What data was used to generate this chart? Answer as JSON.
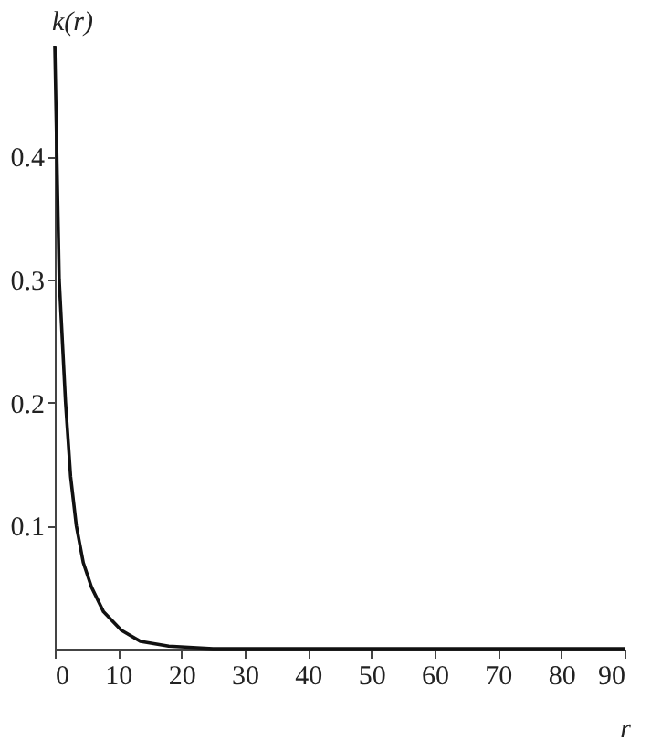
{
  "chart_data": {
    "type": "line",
    "xlabel": "r",
    "ylabel": "k(r)",
    "x": [
      0,
      0.7,
      1.7,
      2.5,
      3.4,
      4.5,
      5.8,
      7.7,
      10.5,
      13.5,
      18,
      25,
      40,
      60,
      90
    ],
    "series": [
      {
        "color": "#111111",
        "values": [
          0.49,
          0.3,
          0.2,
          0.14,
          0.1,
          0.07,
          0.05,
          0.03,
          0.015,
          0.006,
          0.002,
          0,
          0,
          0,
          0
        ]
      }
    ],
    "xlim": [
      0,
      90
    ],
    "xticks": [
      0,
      10,
      20,
      30,
      40,
      50,
      60,
      70,
      80,
      90
    ],
    "ylim": [
      0,
      0.49
    ],
    "yticks": [
      0.1,
      0.2,
      0.3,
      0.4
    ],
    "grid": false,
    "legend": false,
    "marker": "none",
    "line_style": "solid"
  }
}
